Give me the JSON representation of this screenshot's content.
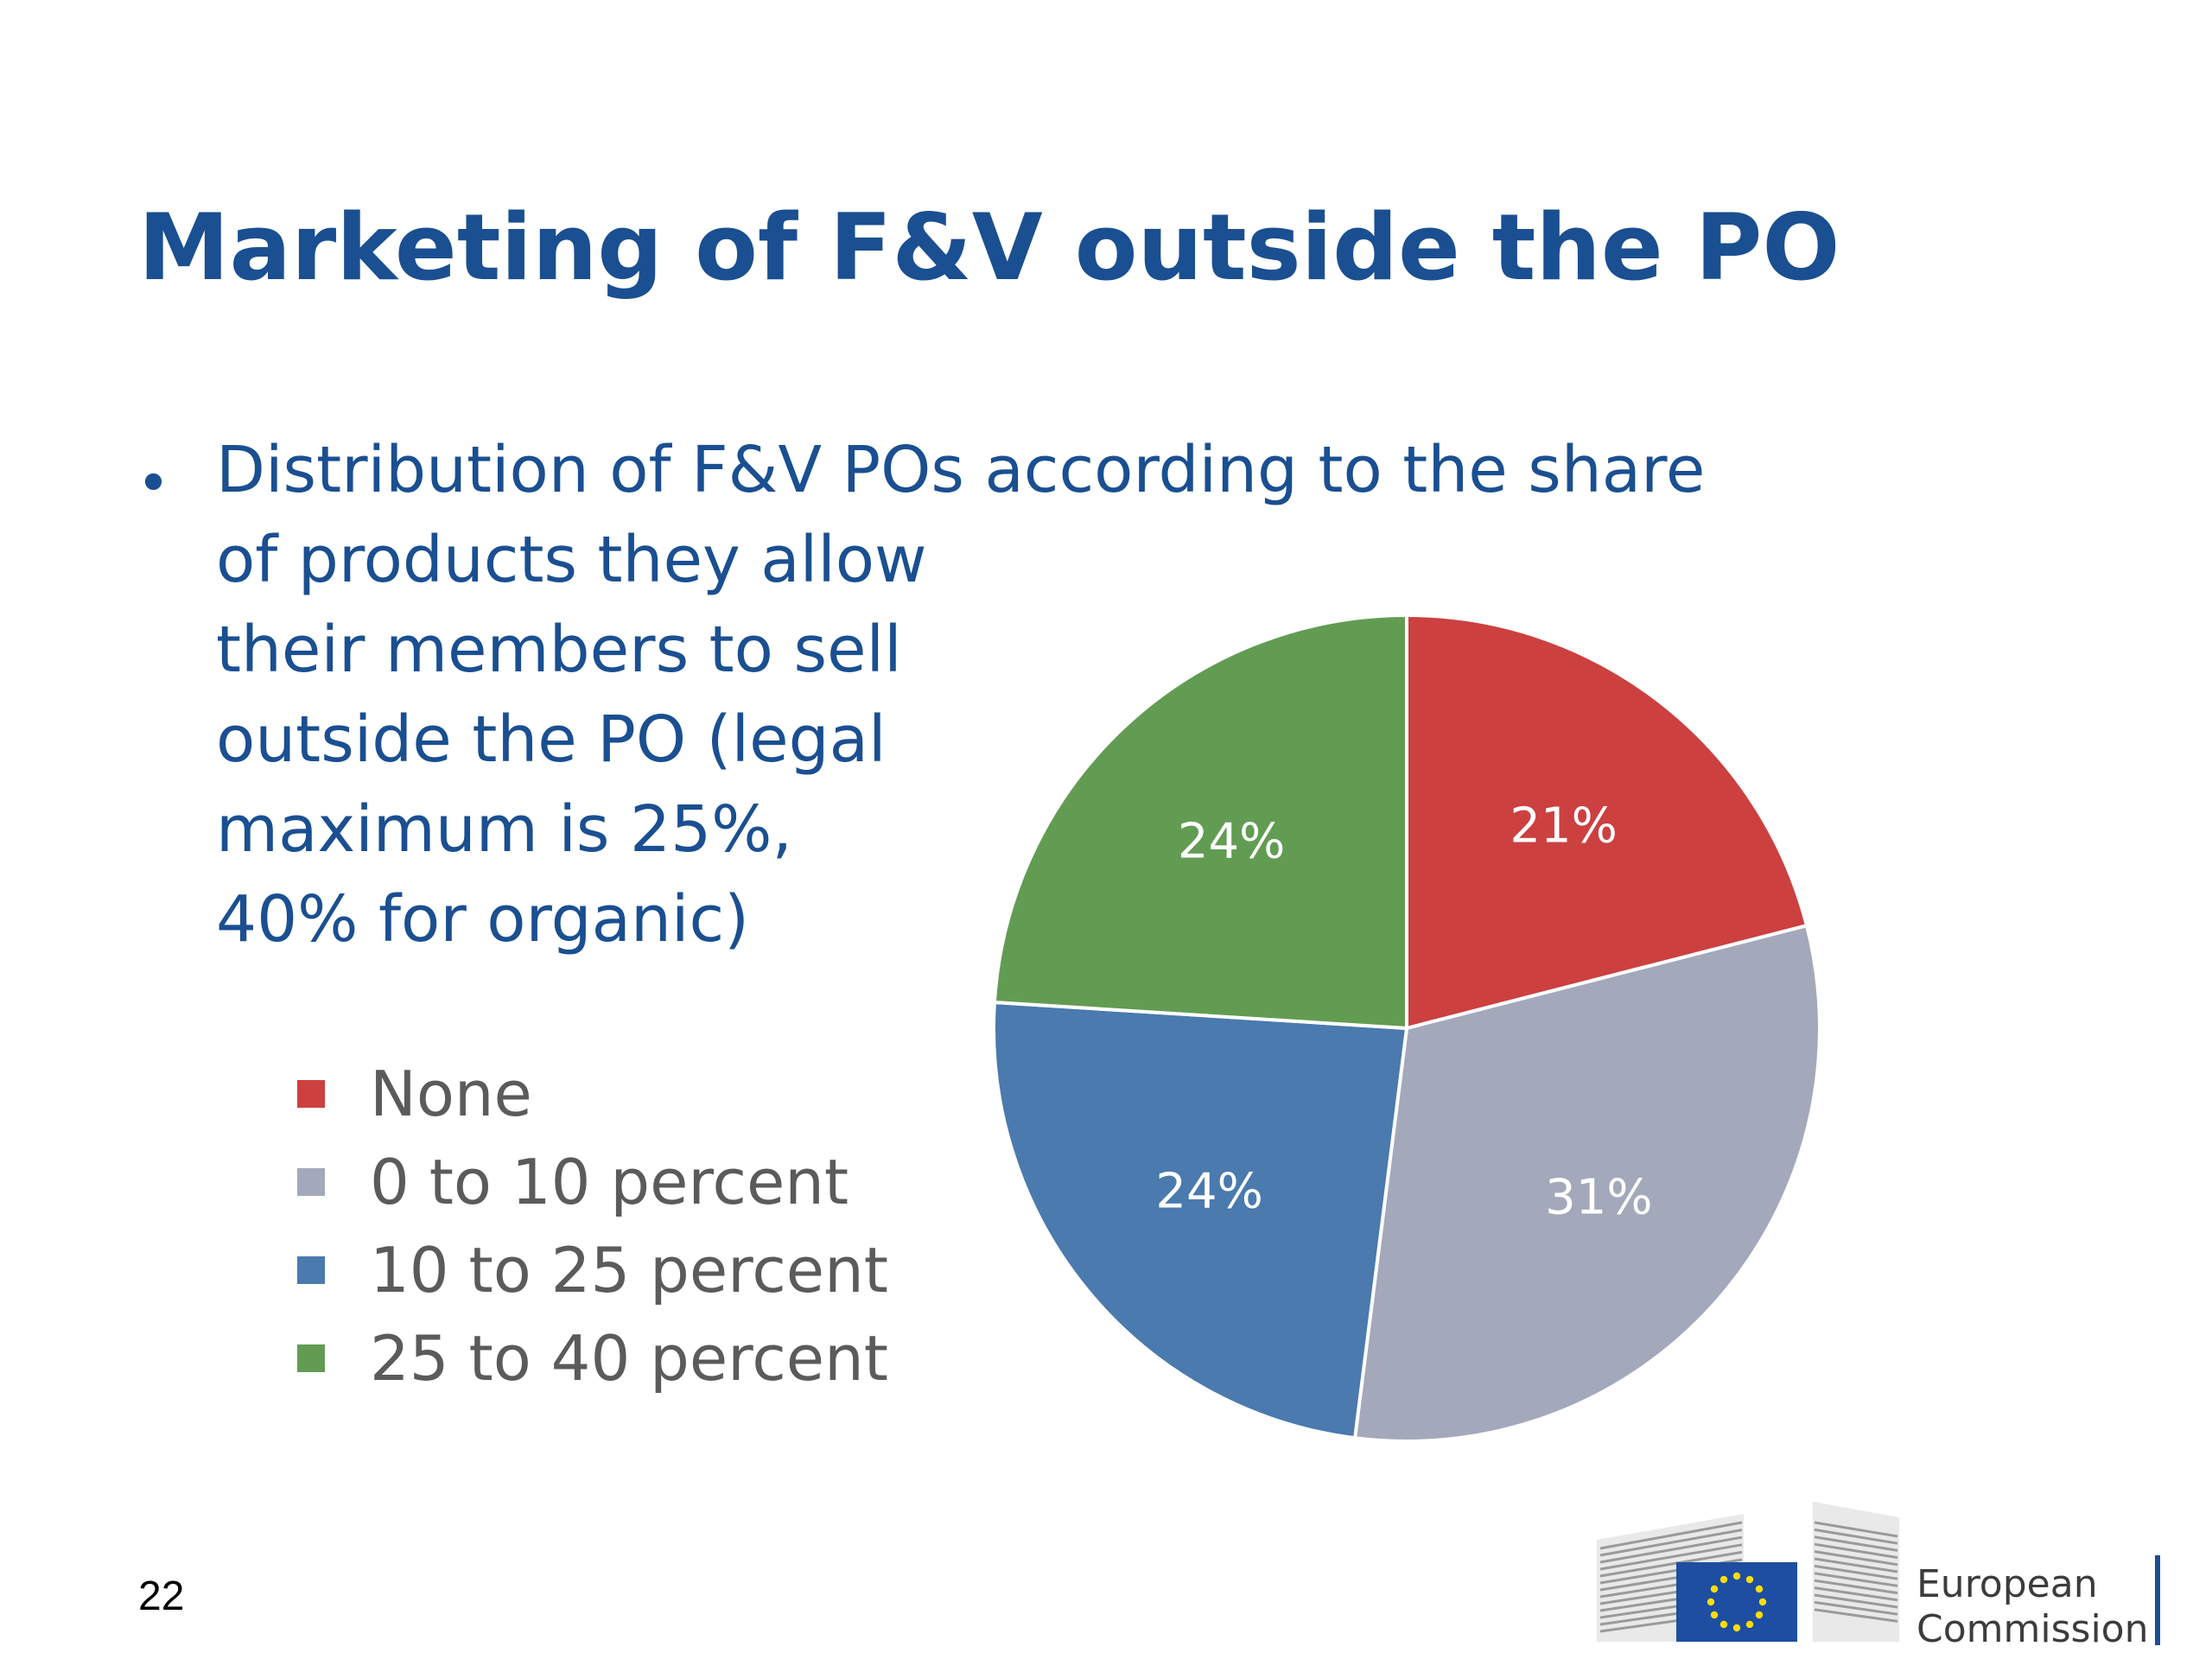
{
  "slide": {
    "title": "Marketing of F&V outside the PO",
    "bullet": {
      "symbol": "•",
      "lines": [
        "Distribution of F&V POs according to the share",
        "of products they allow",
        "their members to sell",
        "outside the PO (legal",
        "maximum is 25%,",
        "40% for organic)"
      ]
    },
    "page_number": "22",
    "logo": {
      "line1": "European",
      "line2": "Commission",
      "icon": "eu-flag-berlaymont-logo"
    },
    "colors": {
      "title": "#1a4f91",
      "legend_text": "#5b5b5b",
      "data_label": "#ffffff"
    }
  },
  "chart_data": {
    "type": "pie",
    "categories": [
      "None",
      "0 to 10 percent",
      "10 to 25 percent",
      "25 to 40 percent"
    ],
    "values": [
      21,
      31,
      24,
      24
    ],
    "labels": [
      "21%",
      "31%",
      "24%",
      "24%"
    ],
    "colors": [
      "#cc4040",
      "#a3a9ba",
      "#4a7aae",
      "#629c53"
    ],
    "start_angle": "top, clockwise",
    "legend_position": "left"
  }
}
